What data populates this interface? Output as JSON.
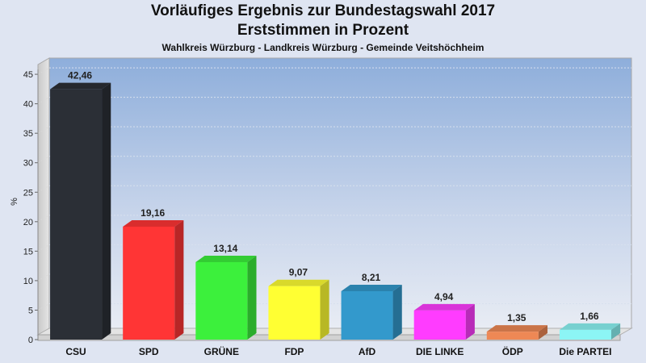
{
  "chart_data": {
    "type": "bar",
    "title": "Vorläufiges Ergebnis zur Bundestagswahl 2017",
    "title_line2": "Erststimmen in Prozent",
    "subtitle": "Wahlkreis Würzburg - Landkreis Würzburg - Gemeinde Veitshöchheim",
    "ylabel": "%",
    "xlabel": "",
    "ylim": [
      0,
      45
    ],
    "yticks": [
      0,
      5,
      10,
      15,
      20,
      25,
      30,
      35,
      40,
      45
    ],
    "grid": true,
    "categories": [
      "CSU",
      "SPD",
      "GRÜNE",
      "FDP",
      "AfD",
      "DIE LINKE",
      "ÖDP",
      "Die PARTEI"
    ],
    "values": [
      42.46,
      19.16,
      13.14,
      9.07,
      8.21,
      4.94,
      1.35,
      1.66
    ],
    "value_labels": [
      "42,46",
      "19,16",
      "13,14",
      "9,07",
      "8,21",
      "4,94",
      "1,35",
      "1,66"
    ],
    "colors": [
      "#2b2f36",
      "#ff3535",
      "#3cf03c",
      "#ffff33",
      "#3399cc",
      "#ff3cff",
      "#ee8855",
      "#8cf5f5"
    ]
  }
}
